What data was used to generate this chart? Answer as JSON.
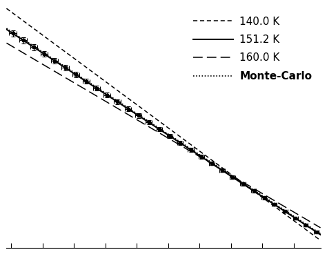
{
  "background_color": "#ffffff",
  "legend_labels": [
    "140.0 K",
    "151.2 K",
    "160.0 K",
    "Monte-Carlo"
  ],
  "line_color": "#000000",
  "fontsize_legend": 11,
  "dpi": 100,
  "x_data": [
    0.05,
    0.38,
    0.72,
    1.05,
    1.38,
    1.72,
    2.05,
    2.38,
    2.72,
    3.05,
    3.38,
    3.72,
    4.05,
    4.38,
    4.72,
    5.05,
    5.38,
    5.72,
    6.05,
    6.38,
    6.72,
    7.05,
    7.38,
    7.72,
    8.05,
    8.38,
    8.72,
    9.05,
    9.38,
    9.72
  ],
  "slope_140": -1.13,
  "slope_151": -1.0,
  "slope_160": -0.9,
  "slope_mc": -1.0,
  "intercept_140": 1.0,
  "intercept_151": 0.0,
  "intercept_160": -0.65,
  "intercept_mc": 0.05,
  "x_min": -0.15,
  "x_max": 9.85,
  "y_min": -10.5,
  "y_max": 1.2,
  "xerr_base": 0.12,
  "yerr_base_rel": 0.18
}
